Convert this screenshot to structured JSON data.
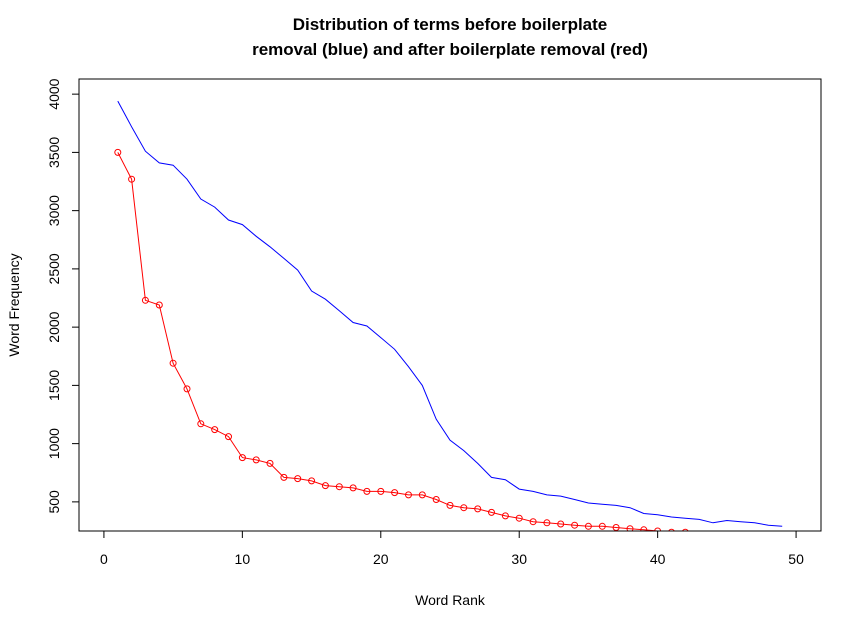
{
  "chart_data": {
    "type": "line",
    "title_line1": "Distribution of terms before boilerplate",
    "title_line2": "removal (blue) and after boilerplate removal (red)",
    "xlabel": "Word Rank",
    "ylabel": "Word Frequency",
    "xlim": [
      -1.8,
      51.8
    ],
    "ylim": [
      250,
      4130
    ],
    "x_ticks": [
      0,
      10,
      20,
      30,
      40,
      50
    ],
    "x_tick_labels": [
      "0",
      "10",
      "20",
      "30",
      "40",
      "50"
    ],
    "y_ticks": [
      500,
      1000,
      1500,
      2000,
      2500,
      3000,
      3500,
      4000
    ],
    "y_tick_labels": [
      "500",
      "1000",
      "1500",
      "2000",
      "2500",
      "3000",
      "3500",
      "4000"
    ],
    "grid": false,
    "series": [
      {
        "color": "#0000ff",
        "style": "line",
        "x": [
          1,
          2,
          3,
          4,
          5,
          6,
          7,
          8,
          9,
          10,
          11,
          12,
          13,
          14,
          15,
          16,
          17,
          18,
          19,
          20,
          21,
          22,
          23,
          24,
          25,
          26,
          27,
          28,
          29,
          30,
          31,
          32,
          33,
          34,
          35,
          36,
          37,
          38,
          39,
          40,
          41,
          42,
          43,
          44,
          45,
          46,
          47,
          48,
          49
        ],
        "y": [
          3940,
          3720,
          3510,
          3410,
          3390,
          3270,
          3100,
          3030,
          2920,
          2880,
          2780,
          2690,
          2590,
          2490,
          2310,
          2240,
          2140,
          2040,
          2010,
          1910,
          1810,
          1660,
          1500,
          1210,
          1030,
          940,
          830,
          710,
          690,
          610,
          590,
          560,
          550,
          520,
          490,
          480,
          470,
          450,
          400,
          390,
          370,
          360,
          350,
          320,
          340,
          330,
          320,
          300,
          290
        ]
      },
      {
        "color": "#ff0000",
        "style": "line+points",
        "x": [
          1,
          2,
          3,
          4,
          5,
          6,
          7,
          8,
          9,
          10,
          11,
          12,
          13,
          14,
          15,
          16,
          17,
          18,
          19,
          20,
          21,
          22,
          23,
          24,
          25,
          26,
          27,
          28,
          29,
          30,
          31,
          32,
          33,
          34,
          35,
          36,
          37,
          38,
          39,
          40,
          41,
          42
        ],
        "y": [
          3500,
          3270,
          2230,
          2190,
          1690,
          1470,
          1170,
          1120,
          1060,
          880,
          860,
          830,
          710,
          700,
          680,
          640,
          630,
          620,
          590,
          590,
          580,
          560,
          560,
          520,
          470,
          450,
          440,
          410,
          380,
          360,
          330,
          320,
          310,
          300,
          290,
          290,
          280,
          270,
          260,
          250,
          240,
          240
        ]
      }
    ]
  }
}
